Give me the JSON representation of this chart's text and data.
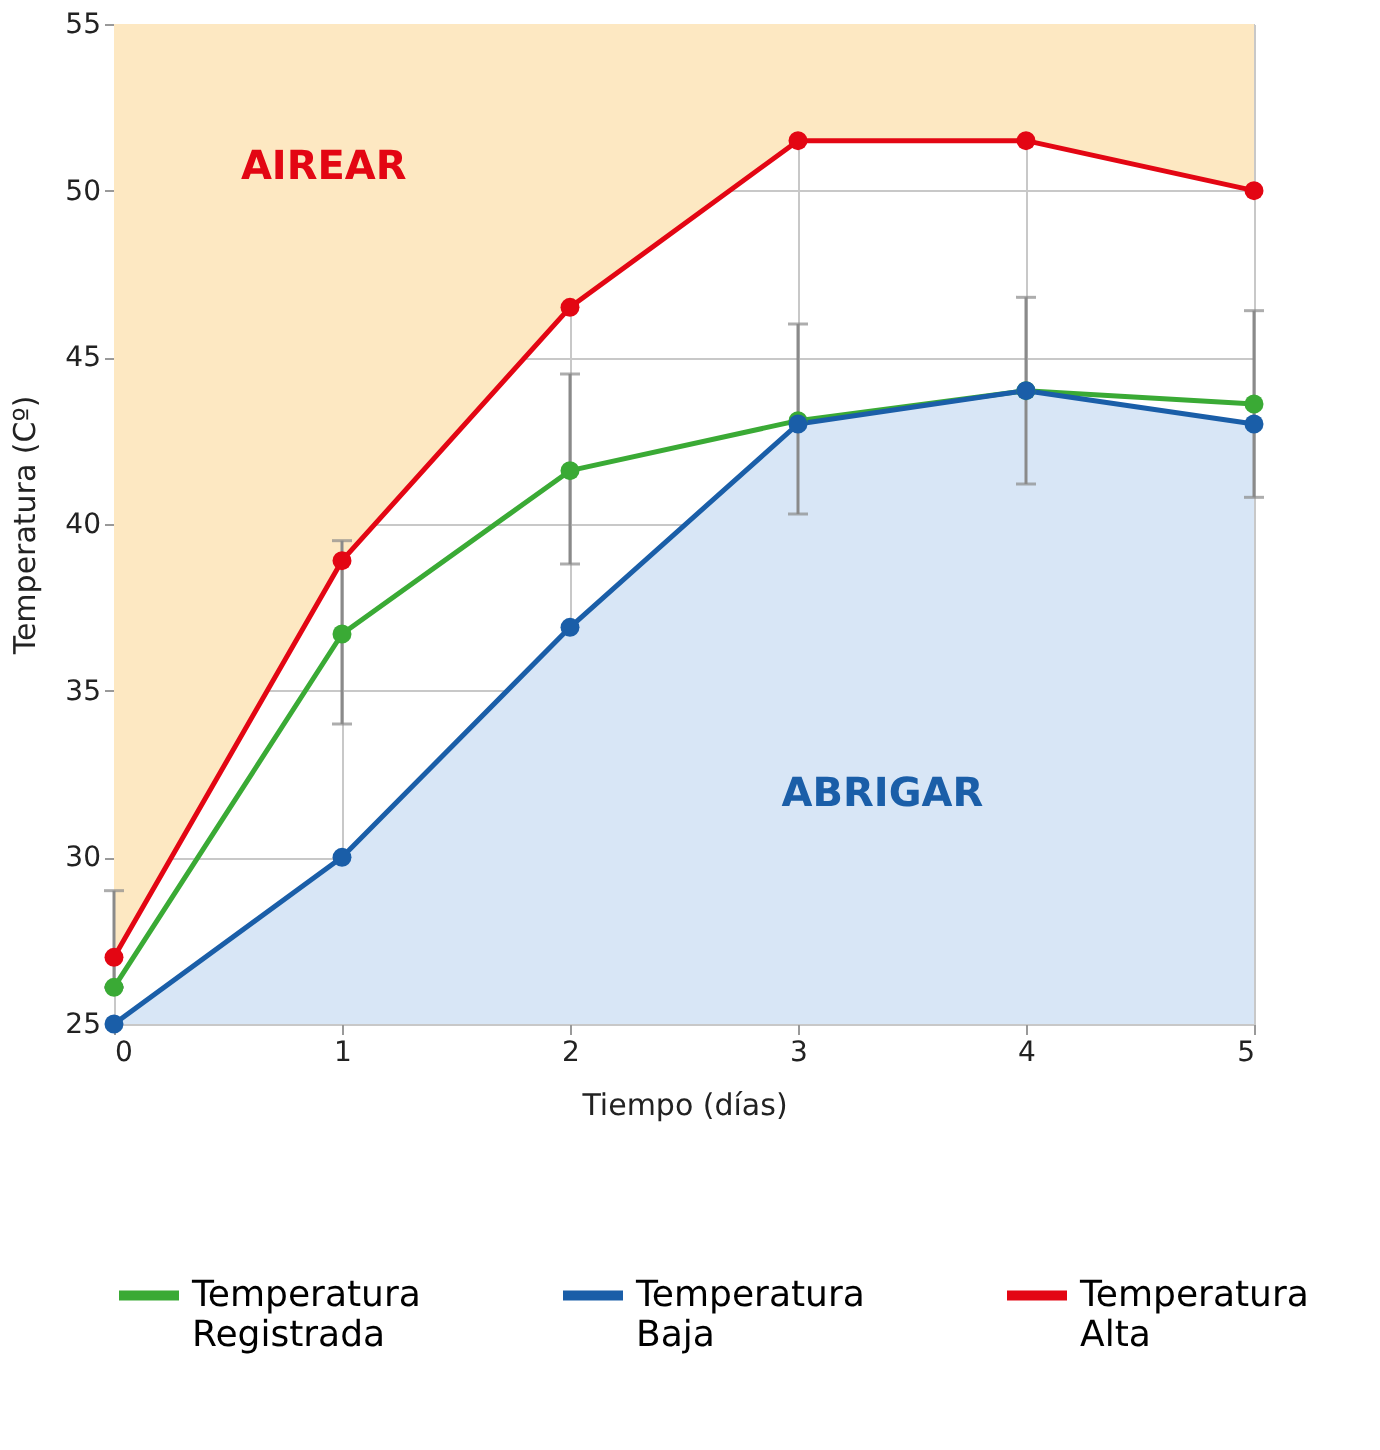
{
  "chart_data": {
    "type": "line",
    "xlabel": "Tiempo (días)",
    "ylabel": "Temperatura (Cº)",
    "x": [
      0,
      1,
      2,
      3,
      4,
      5
    ],
    "xlim": [
      0,
      5
    ],
    "xticks": [
      0,
      1,
      2,
      3,
      4,
      5
    ],
    "ylim": [
      25,
      55
    ],
    "yticks": [
      25,
      30,
      35,
      40,
      45,
      50,
      55
    ],
    "grid": true,
    "marker": "circle",
    "line_style": "solid",
    "legend": "bottom",
    "series": [
      {
        "name": "Temperatura Registrada",
        "color": "#3aaa35",
        "values": [
          26.1,
          36.7,
          41.6,
          43.1,
          44.0,
          43.6
        ],
        "errors": [
          [
            26.1,
            29.0
          ],
          [
            34.0,
            39.5
          ],
          [
            38.8,
            44.5
          ],
          [
            40.3,
            46.0
          ],
          [
            41.2,
            46.8
          ],
          [
            40.8,
            46.4
          ]
        ]
      },
      {
        "name": "Temperatura Baja",
        "color": "#1a5ea8",
        "values": [
          25,
          30.0,
          36.9,
          43.0,
          44.0,
          43.0
        ],
        "lower": [
          25,
          25,
          25,
          25,
          25,
          25
        ],
        "upper": [
          25,
          30.0,
          36.9,
          43.0,
          44.0,
          43.0
        ]
      },
      {
        "name": "Temperatura Alta",
        "color": "#e30613",
        "values": [
          27.0,
          38.9,
          46.5,
          51.5,
          51.5,
          50.0
        ],
        "lower": [
          27.0,
          38.9,
          46.5,
          51.5,
          51.5,
          50.0
        ],
        "upper": [
          55,
          55,
          55,
          55,
          55,
          55
        ]
      }
    ],
    "annotations": [
      "AIREAR",
      "ABRIGAR"
    ]
  }
}
